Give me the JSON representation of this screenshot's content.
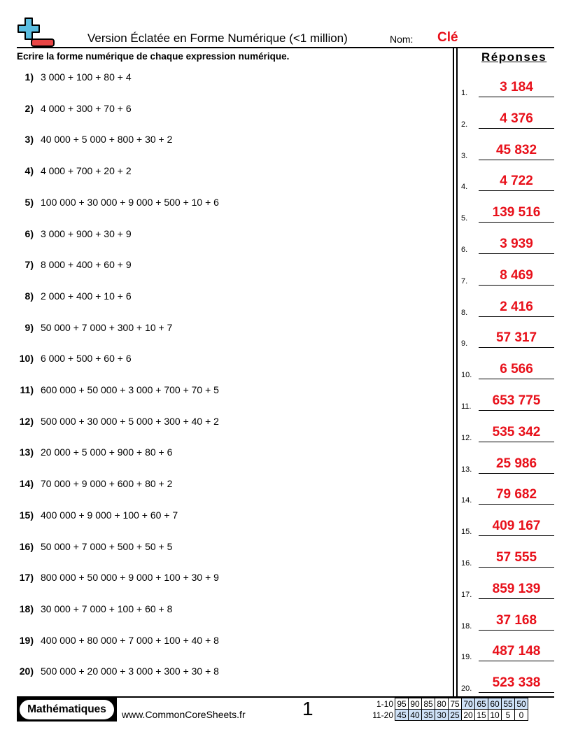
{
  "header": {
    "title": "Version Éclatée en Forme Numérique (<1 million)",
    "name_label": "Nom:",
    "name_value": "Clé",
    "logo_icon": "plus-minus-icon"
  },
  "instructions": "Ecrire la forme numérique de chaque expression numérique.",
  "answers_title": "Réponses",
  "problems": [
    {
      "n": "1)",
      "expr": "3 000 + 100 + 80 + 4",
      "answer": "3 184"
    },
    {
      "n": "2)",
      "expr": "4 000 + 300 + 70 + 6",
      "answer": "4 376"
    },
    {
      "n": "3)",
      "expr": "40 000 + 5 000 + 800 + 30 + 2",
      "answer": "45 832"
    },
    {
      "n": "4)",
      "expr": "4 000 + 700 + 20 + 2",
      "answer": "4 722"
    },
    {
      "n": "5)",
      "expr": "100 000 + 30 000 + 9 000 + 500 + 10 + 6",
      "answer": "139 516"
    },
    {
      "n": "6)",
      "expr": "3 000 + 900 + 30 + 9",
      "answer": "3 939"
    },
    {
      "n": "7)",
      "expr": "8 000 + 400 + 60 + 9",
      "answer": "8 469"
    },
    {
      "n": "8)",
      "expr": "2 000 + 400 + 10 + 6",
      "answer": "2 416"
    },
    {
      "n": "9)",
      "expr": "50 000 + 7 000 + 300 + 10 + 7",
      "answer": "57 317"
    },
    {
      "n": "10)",
      "expr": "6 000 + 500 + 60 + 6",
      "answer": "6 566"
    },
    {
      "n": "11)",
      "expr": "600 000 + 50 000 + 3 000 + 700 + 70 + 5",
      "answer": "653 775"
    },
    {
      "n": "12)",
      "expr": "500 000 + 30 000 + 5 000 + 300 + 40 + 2",
      "answer": "535 342"
    },
    {
      "n": "13)",
      "expr": "20 000 + 5 000 + 900 + 80 + 6",
      "answer": "25 986"
    },
    {
      "n": "14)",
      "expr": "70 000 + 9 000 + 600 + 80 + 2",
      "answer": "79 682"
    },
    {
      "n": "15)",
      "expr": "400 000 + 9 000 + 100 + 60 + 7",
      "answer": "409 167"
    },
    {
      "n": "16)",
      "expr": "50 000 + 7 000 + 500 + 50 + 5",
      "answer": "57 555"
    },
    {
      "n": "17)",
      "expr": "800 000 + 50 000 + 9 000 + 100 + 30 + 9",
      "answer": "859 139"
    },
    {
      "n": "18)",
      "expr": "30 000 + 7 000 + 100 + 60 + 8",
      "answer": "37 168"
    },
    {
      "n": "19)",
      "expr": "400 000 + 80 000 + 7 000 + 100 + 40 + 8",
      "answer": "487 148"
    },
    {
      "n": "20)",
      "expr": "500 000 + 20 000 + 3 000 + 300 + 30 + 8",
      "answer": "523 338"
    }
  ],
  "answer_numbers": [
    "1.",
    "2.",
    "3.",
    "4.",
    "5.",
    "6.",
    "7.",
    "8.",
    "9.",
    "10.",
    "11.",
    "12.",
    "13.",
    "14.",
    "15.",
    "16.",
    "17.",
    "18.",
    "19.",
    "20."
  ],
  "footer": {
    "badge": "Mathématiques",
    "site": "www.CommonCoreSheets.fr",
    "page": "1",
    "score_rows": [
      {
        "label": "1-10",
        "values": [
          "95",
          "90",
          "85",
          "80",
          "75",
          "70",
          "65",
          "60",
          "55",
          "50"
        ],
        "highlight_from": 5,
        "highlight_to": 9
      },
      {
        "label": "11-20",
        "values": [
          "45",
          "40",
          "35",
          "30",
          "25",
          "20",
          "15",
          "10",
          "5",
          "0"
        ],
        "highlight_from": 0,
        "highlight_to": 4
      }
    ],
    "highlight_color": "#cfe2f8"
  },
  "colors": {
    "answer": "#e8101a",
    "logo_plus": "#5bbde0",
    "logo_minus": "#e84545"
  }
}
